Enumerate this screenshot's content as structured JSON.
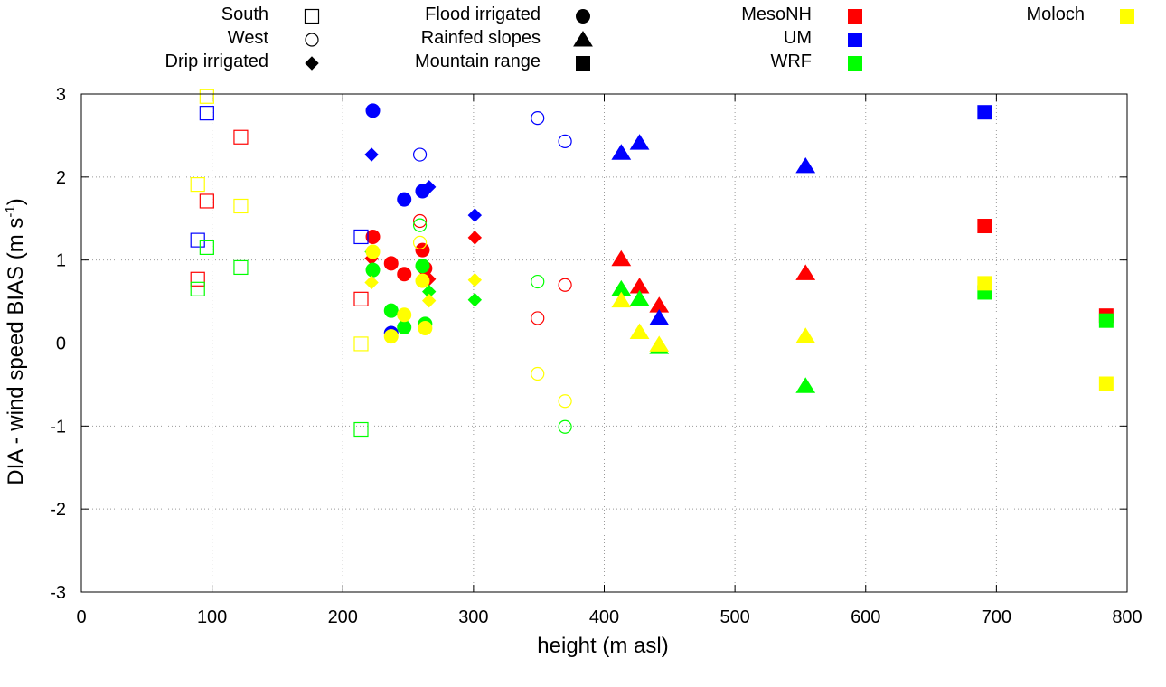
{
  "chart_data": {
    "type": "scatter",
    "xlabel": "height (m asl)",
    "ylabel": {
      "main": "DIA - wind speed BIAS (m s",
      "sup": "-1",
      "close": ")"
    },
    "xlim": [
      0,
      800
    ],
    "ylim": [
      -3,
      3
    ],
    "xticks": [
      0,
      100,
      200,
      300,
      400,
      500,
      600,
      700,
      800
    ],
    "yticks": [
      -3,
      -2,
      -1,
      0,
      1,
      2,
      3
    ],
    "grid": true,
    "legend_position": "top",
    "legend": {
      "regions": [
        {
          "label": "South",
          "marker": "square-open"
        },
        {
          "label": "West",
          "marker": "circle-open"
        },
        {
          "label": "Drip irrigated",
          "marker": "diamond"
        },
        {
          "label": "Flood irrigated",
          "marker": "circle"
        },
        {
          "label": "Rainfed slopes",
          "marker": "triangle"
        },
        {
          "label": "Mountain range",
          "marker": "square"
        }
      ],
      "models": [
        {
          "label": "MesoNH",
          "color": "#ff0000"
        },
        {
          "label": "UM",
          "color": "#0000ff"
        },
        {
          "label": "WRF",
          "color": "#00ff00"
        },
        {
          "label": "Moloch",
          "color": "#ffff00"
        }
      ]
    },
    "series": [
      {
        "model": "MesoNH",
        "color": "#ff0000",
        "points": [
          {
            "x": 122,
            "y": 2.48,
            "m": "square-open"
          },
          {
            "x": 96,
            "y": 1.71,
            "m": "square-open"
          },
          {
            "x": 89,
            "y": 0.77,
            "m": "square-open"
          },
          {
            "x": 214,
            "y": 0.53,
            "m": "square-open"
          },
          {
            "x": 259,
            "y": 1.47,
            "m": "circle-open"
          },
          {
            "x": 370,
            "y": 0.7,
            "m": "circle-open"
          },
          {
            "x": 349,
            "y": 0.3,
            "m": "circle-open"
          },
          {
            "x": 222,
            "y": 1.02,
            "m": "diamond"
          },
          {
            "x": 301,
            "y": 1.27,
            "m": "diamond"
          },
          {
            "x": 266,
            "y": 0.77,
            "m": "diamond"
          },
          {
            "x": 223,
            "y": 1.28,
            "m": "circle"
          },
          {
            "x": 261,
            "y": 1.12,
            "m": "circle"
          },
          {
            "x": 237,
            "y": 0.96,
            "m": "circle"
          },
          {
            "x": 247,
            "y": 0.83,
            "m": "circle"
          },
          {
            "x": 263,
            "y": 0.9,
            "m": "circle"
          },
          {
            "x": 413,
            "y": 1.01,
            "m": "triangle"
          },
          {
            "x": 427,
            "y": 0.68,
            "m": "triangle"
          },
          {
            "x": 442,
            "y": 0.45,
            "m": "triangle"
          },
          {
            "x": 554,
            "y": 0.84,
            "m": "triangle"
          },
          {
            "x": 691,
            "y": 1.41,
            "m": "square"
          },
          {
            "x": 784,
            "y": 0.33,
            "m": "square"
          }
        ]
      },
      {
        "model": "UM",
        "color": "#0000ff",
        "points": [
          {
            "x": 96,
            "y": 2.77,
            "m": "square-open"
          },
          {
            "x": 89,
            "y": 1.24,
            "m": "square-open"
          },
          {
            "x": 214,
            "y": 1.28,
            "m": "square-open"
          },
          {
            "x": 349,
            "y": 2.71,
            "m": "circle-open"
          },
          {
            "x": 370,
            "y": 2.43,
            "m": "circle-open"
          },
          {
            "x": 259,
            "y": 2.27,
            "m": "circle-open"
          },
          {
            "x": 222,
            "y": 2.27,
            "m": "diamond"
          },
          {
            "x": 266,
            "y": 1.88,
            "m": "diamond"
          },
          {
            "x": 301,
            "y": 1.54,
            "m": "diamond"
          },
          {
            "x": 223,
            "y": 2.8,
            "m": "circle"
          },
          {
            "x": 247,
            "y": 1.73,
            "m": "circle"
          },
          {
            "x": 261,
            "y": 1.83,
            "m": "circle"
          },
          {
            "x": 237,
            "y": 0.12,
            "m": "circle"
          },
          {
            "x": 413,
            "y": 2.29,
            "m": "triangle"
          },
          {
            "x": 427,
            "y": 2.41,
            "m": "triangle"
          },
          {
            "x": 442,
            "y": 0.3,
            "m": "triangle"
          },
          {
            "x": 554,
            "y": 2.13,
            "m": "triangle"
          },
          {
            "x": 691,
            "y": 2.78,
            "m": "square"
          }
        ]
      },
      {
        "model": "WRF",
        "color": "#00ff00",
        "points": [
          {
            "x": 96,
            "y": 1.15,
            "m": "square-open"
          },
          {
            "x": 122,
            "y": 0.91,
            "m": "square-open"
          },
          {
            "x": 89,
            "y": 0.65,
            "m": "square-open"
          },
          {
            "x": 214,
            "y": -1.04,
            "m": "square-open"
          },
          {
            "x": 259,
            "y": 1.42,
            "m": "circle-open"
          },
          {
            "x": 349,
            "y": 0.74,
            "m": "circle-open"
          },
          {
            "x": 370,
            "y": -1.01,
            "m": "circle-open"
          },
          {
            "x": 222,
            "y": 1.1,
            "m": "diamond"
          },
          {
            "x": 266,
            "y": 0.62,
            "m": "diamond"
          },
          {
            "x": 301,
            "y": 0.52,
            "m": "diamond"
          },
          {
            "x": 223,
            "y": 0.88,
            "m": "circle"
          },
          {
            "x": 261,
            "y": 0.93,
            "m": "circle"
          },
          {
            "x": 237,
            "y": 0.39,
            "m": "circle"
          },
          {
            "x": 247,
            "y": 0.19,
            "m": "circle"
          },
          {
            "x": 263,
            "y": 0.23,
            "m": "circle"
          },
          {
            "x": 413,
            "y": 0.65,
            "m": "triangle"
          },
          {
            "x": 427,
            "y": 0.53,
            "m": "triangle"
          },
          {
            "x": 442,
            "y": -0.05,
            "m": "triangle"
          },
          {
            "x": 554,
            "y": -0.52,
            "m": "triangle"
          },
          {
            "x": 691,
            "y": 0.61,
            "m": "square"
          },
          {
            "x": 784,
            "y": 0.27,
            "m": "square"
          }
        ]
      },
      {
        "model": "Moloch",
        "color": "#ffff00",
        "points": [
          {
            "x": 96,
            "y": 2.97,
            "m": "square-open"
          },
          {
            "x": 89,
            "y": 1.91,
            "m": "square-open"
          },
          {
            "x": 122,
            "y": 1.65,
            "m": "square-open"
          },
          {
            "x": 214,
            "y": -0.01,
            "m": "square-open"
          },
          {
            "x": 259,
            "y": 1.21,
            "m": "circle-open"
          },
          {
            "x": 349,
            "y": -0.37,
            "m": "circle-open"
          },
          {
            "x": 370,
            "y": -0.7,
            "m": "circle-open"
          },
          {
            "x": 222,
            "y": 0.73,
            "m": "diamond"
          },
          {
            "x": 266,
            "y": 0.51,
            "m": "diamond"
          },
          {
            "x": 301,
            "y": 0.76,
            "m": "diamond"
          },
          {
            "x": 223,
            "y": 1.1,
            "m": "circle"
          },
          {
            "x": 261,
            "y": 0.75,
            "m": "circle"
          },
          {
            "x": 247,
            "y": 0.34,
            "m": "circle"
          },
          {
            "x": 237,
            "y": 0.08,
            "m": "circle"
          },
          {
            "x": 263,
            "y": 0.18,
            "m": "circle"
          },
          {
            "x": 413,
            "y": 0.51,
            "m": "triangle"
          },
          {
            "x": 427,
            "y": 0.13,
            "m": "triangle"
          },
          {
            "x": 442,
            "y": -0.02,
            "m": "triangle"
          },
          {
            "x": 554,
            "y": 0.08,
            "m": "triangle"
          },
          {
            "x": 691,
            "y": 0.72,
            "m": "square"
          },
          {
            "x": 784,
            "y": -0.49,
            "m": "square"
          }
        ]
      }
    ]
  }
}
